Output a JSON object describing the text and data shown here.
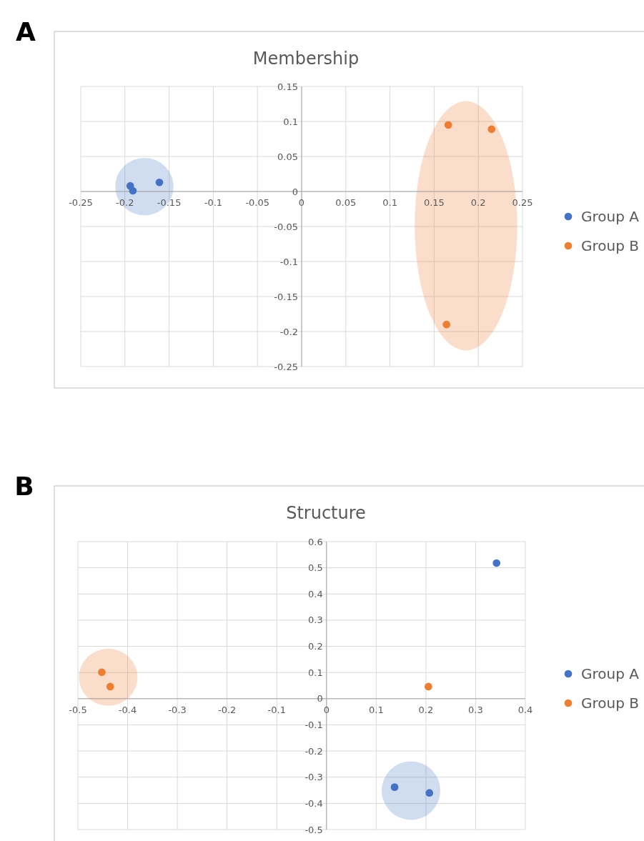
{
  "chart_data": [
    {
      "type": "scatter",
      "title": "Membership",
      "annotations": [
        "A"
      ],
      "xlim": [
        -0.25,
        0.25
      ],
      "ylim": [
        -0.25,
        0.15
      ],
      "xticks": [
        -0.25,
        -0.2,
        -0.15,
        -0.1,
        -0.05,
        0,
        0.05,
        0.1,
        0.15,
        0.2,
        0.25
      ],
      "yticks": [
        -0.25,
        -0.2,
        -0.15,
        -0.1,
        -0.05,
        0,
        0.05,
        0.1,
        0.15
      ],
      "grid": true,
      "legend": "right",
      "marker": "circle",
      "series": [
        {
          "name": "Group A",
          "color": "#4472c4",
          "x": [
            -0.194,
            -0.191,
            -0.161
          ],
          "values": [
            0.008,
            0.001,
            0.013
          ]
        },
        {
          "name": "Group B",
          "color": "#ed7d31",
          "x": [
            0.166,
            0.215,
            0.164
          ],
          "values": [
            0.095,
            0.089,
            -0.19
          ]
        }
      ]
    },
    {
      "type": "scatter",
      "title": "Structure",
      "annotations": [
        "B"
      ],
      "xlim": [
        -0.5,
        0.4
      ],
      "ylim": [
        -0.5,
        0.6
      ],
      "xticks": [
        -0.5,
        -0.4,
        -0.3,
        -0.2,
        -0.1,
        0,
        0.1,
        0.2,
        0.3,
        0.4
      ],
      "yticks": [
        -0.5,
        -0.4,
        -0.3,
        -0.2,
        -0.1,
        0,
        0.1,
        0.2,
        0.3,
        0.4,
        0.5,
        0.6
      ],
      "grid": true,
      "legend": "right",
      "marker": "circle",
      "series": [
        {
          "name": "Group A",
          "color": "#4472c4",
          "x": [
            0.137,
            0.207,
            0.342
          ],
          "values": [
            -0.338,
            -0.36,
            0.518
          ]
        },
        {
          "name": "Group B",
          "color": "#ed7d31",
          "x": [
            -0.452,
            -0.435,
            0.205
          ],
          "values": [
            0.101,
            0.046,
            0.046
          ]
        }
      ]
    }
  ]
}
